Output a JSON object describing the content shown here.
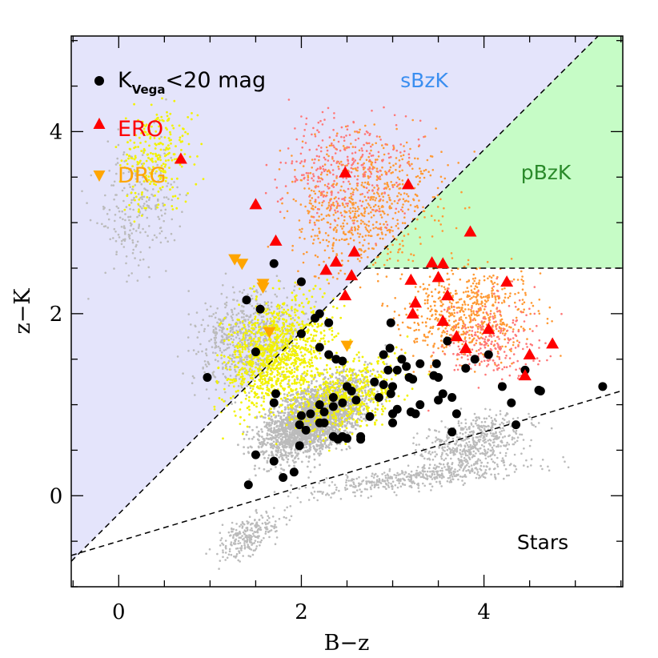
{
  "chart_data": {
    "type": "scatter",
    "title": "",
    "xlabel": "B−z",
    "ylabel": "z−K",
    "xlim": [
      -0.52,
      5.52
    ],
    "ylim": [
      -1.0,
      5.05
    ],
    "xticks": [
      0,
      2,
      4
    ],
    "xtick_labels": [
      "0",
      "2",
      "4"
    ],
    "yticks": [
      0,
      2,
      4
    ],
    "ytick_labels": [
      "0",
      "2",
      "4"
    ],
    "grid": false,
    "legend_position": "top-left",
    "colors": {
      "kvega": "#000000",
      "ero": "#ff0000",
      "drg": "#ffa500",
      "background_gray": "#bbbbbb",
      "background_yellow": "#f2f200",
      "background_orange": "#ff9933",
      "background_pink": "#ff7777",
      "sbzk_region": "#e4e4fb",
      "pbzk_region": "#c6fcc6",
      "sbzk_text": "#3a8ef0",
      "pbzk_text": "#2a8a2a"
    },
    "legend": [
      {
        "series": "kvega",
        "marker": "circle",
        "text_main": "K",
        "text_sub": "Vega",
        "text_rest": "<20 mag"
      },
      {
        "series": "ero",
        "marker": "triangle-up",
        "text": "ERO"
      },
      {
        "series": "drg",
        "marker": "triangle-down",
        "text": "DRG"
      }
    ],
    "regions": [
      {
        "name": "sBzK",
        "label": "sBzK",
        "label_at": [
          3.4,
          4.5
        ],
        "boundary": "z-K > (B-z) - 0.2"
      },
      {
        "name": "pBzK",
        "label": "pBzK",
        "label_at": [
          4.6,
          3.5
        ],
        "boundary": "z-K < (B-z) - 0.2 and z-K > 2.5"
      },
      {
        "name": "Stars",
        "label": "Stars",
        "label_at": [
          4.55,
          -0.5
        ],
        "boundary": "z-K < 0.3(B-z) - 0.5"
      }
    ],
    "lines": [
      {
        "name": "bzk-diagonal",
        "style": "dashed",
        "slope": 1.0,
        "intercept": -0.2
      },
      {
        "name": "passive-cut",
        "style": "dashed",
        "y": 2.5,
        "x_from": 2.7
      },
      {
        "name": "star-line",
        "style": "dashed",
        "slope": 0.3,
        "intercept": -0.5
      }
    ],
    "series": [
      {
        "name": "K_Vega<20 mag",
        "key": "kvega",
        "points": [
          [
            1.7,
            2.55
          ],
          [
            2.0,
            2.35
          ],
          [
            1.4,
            2.15
          ],
          [
            1.55,
            2.05
          ],
          [
            2.2,
            2.0
          ],
          [
            2.15,
            1.95
          ],
          [
            2.3,
            1.9
          ],
          [
            2.0,
            1.78
          ],
          [
            0.97,
            1.3
          ],
          [
            1.5,
            1.58
          ],
          [
            1.72,
            1.12
          ],
          [
            1.7,
            1.02
          ],
          [
            2.2,
            1.63
          ],
          [
            2.3,
            1.55
          ],
          [
            2.38,
            1.5
          ],
          [
            2.45,
            1.48
          ],
          [
            2.55,
            1.15
          ],
          [
            2.6,
            1.05
          ],
          [
            2.35,
            1.08
          ],
          [
            2.45,
            1.02
          ],
          [
            2.2,
            1.0
          ],
          [
            2.35,
            0.98
          ],
          [
            2.25,
            0.92
          ],
          [
            2.1,
            0.9
          ],
          [
            2.0,
            0.88
          ],
          [
            1.98,
            0.78
          ],
          [
            2.2,
            0.8
          ],
          [
            2.25,
            0.8
          ],
          [
            2.35,
            0.65
          ],
          [
            2.4,
            0.62
          ],
          [
            2.45,
            0.65
          ],
          [
            2.5,
            0.63
          ],
          [
            2.65,
            0.65
          ],
          [
            2.65,
            0.62
          ],
          [
            1.98,
            0.55
          ],
          [
            2.05,
            0.72
          ],
          [
            1.5,
            0.45
          ],
          [
            1.7,
            0.38
          ],
          [
            1.8,
            0.2
          ],
          [
            1.92,
            0.26
          ],
          [
            1.42,
            0.12
          ],
          [
            2.98,
            1.9
          ],
          [
            2.97,
            1.62
          ],
          [
            3.1,
            1.5
          ],
          [
            3.22,
            1.28
          ],
          [
            3.15,
            1.42
          ],
          [
            3.05,
            1.38
          ],
          [
            3.0,
            1.2
          ],
          [
            2.9,
            1.55
          ],
          [
            2.95,
            1.38
          ],
          [
            2.8,
            1.25
          ],
          [
            2.9,
            1.22
          ],
          [
            2.85,
            1.08
          ],
          [
            2.98,
            1.12
          ],
          [
            3.0,
            0.9
          ],
          [
            3.05,
            0.95
          ],
          [
            3.2,
            0.92
          ],
          [
            3.25,
            0.9
          ],
          [
            3.3,
            1.0
          ],
          [
            3.45,
            1.32
          ],
          [
            3.48,
            1.45
          ],
          [
            3.5,
            1.3
          ],
          [
            3.6,
            1.7
          ],
          [
            3.55,
            1.12
          ],
          [
            3.5,
            1.05
          ],
          [
            3.65,
            1.08
          ],
          [
            3.7,
            0.9
          ],
          [
            3.65,
            0.7
          ],
          [
            3.8,
            1.4
          ],
          [
            3.9,
            1.5
          ],
          [
            4.05,
            1.55
          ],
          [
            4.2,
            1.2
          ],
          [
            4.3,
            1.02
          ],
          [
            4.35,
            0.78
          ],
          [
            4.45,
            1.38
          ],
          [
            4.6,
            1.16
          ],
          [
            4.62,
            1.15
          ],
          [
            5.3,
            1.2
          ],
          [
            2.5,
            1.2
          ],
          [
            2.75,
            0.87
          ],
          [
            3.3,
            1.45
          ],
          [
            3.18,
            1.3
          ],
          [
            3.0,
            0.8
          ]
        ]
      },
      {
        "name": "ERO",
        "key": "ero",
        "points": [
          [
            0.68,
            3.7
          ],
          [
            1.5,
            3.2
          ],
          [
            1.72,
            2.8
          ],
          [
            2.48,
            3.55
          ],
          [
            3.17,
            3.42
          ],
          [
            2.38,
            2.57
          ],
          [
            2.27,
            2.48
          ],
          [
            2.55,
            2.42
          ],
          [
            2.58,
            2.68
          ],
          [
            2.48,
            2.2
          ],
          [
            3.2,
            2.37
          ],
          [
            3.25,
            2.12
          ],
          [
            3.22,
            2.0
          ],
          [
            3.43,
            2.56
          ],
          [
            3.55,
            2.55
          ],
          [
            3.5,
            2.4
          ],
          [
            3.6,
            2.2
          ],
          [
            3.55,
            1.92
          ],
          [
            3.7,
            1.75
          ],
          [
            3.8,
            1.62
          ],
          [
            3.85,
            2.9
          ],
          [
            4.05,
            1.83
          ],
          [
            4.25,
            2.35
          ],
          [
            4.5,
            1.55
          ],
          [
            4.45,
            1.32
          ],
          [
            4.75,
            1.67
          ]
        ]
      },
      {
        "name": "DRG",
        "key": "drg",
        "points": [
          [
            1.27,
            2.6
          ],
          [
            1.35,
            2.55
          ],
          [
            1.58,
            2.33
          ],
          [
            1.58,
            2.29
          ],
          [
            1.65,
            1.8
          ],
          [
            2.5,
            1.65
          ]
        ]
      }
    ]
  }
}
